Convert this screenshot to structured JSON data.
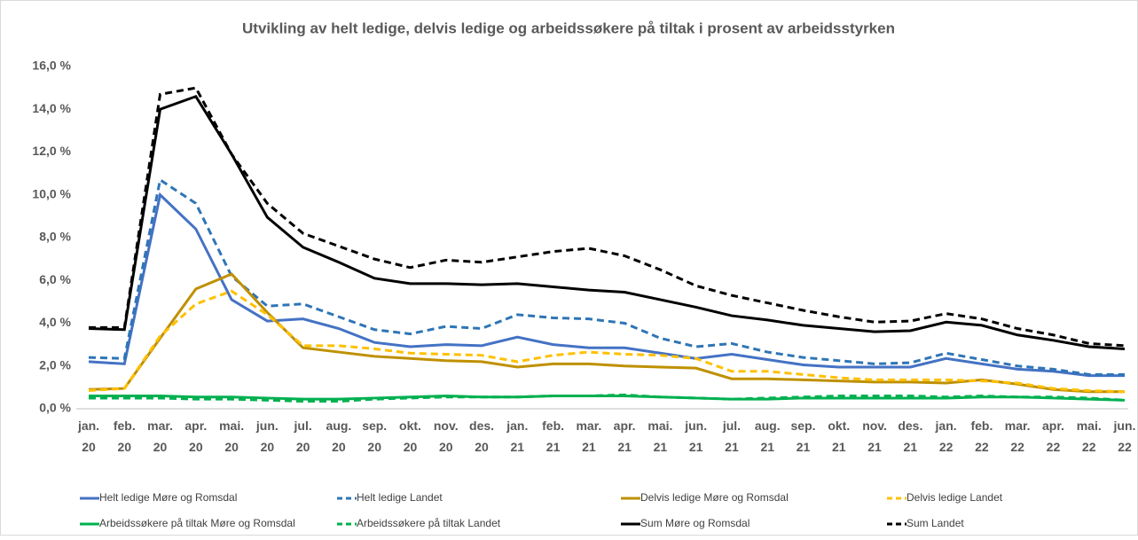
{
  "chart_data": {
    "type": "line",
    "title": "Utvikling av helt ledige, delvis ledige og arbeidssøkere på tiltak i prosent av arbeidsstyrken",
    "categories": [
      "jan. 20",
      "feb. 20",
      "mar. 20",
      "apr. 20",
      "mai. 20",
      "jun. 20",
      "jul. 20",
      "aug. 20",
      "sep. 20",
      "okt. 20",
      "nov. 20",
      "des. 20",
      "jan. 21",
      "feb. 21",
      "mar. 21",
      "apr. 21",
      "mai. 21",
      "jun. 21",
      "jul. 21",
      "aug. 21",
      "sep. 21",
      "okt. 21",
      "nov. 21",
      "des. 21",
      "jan. 22",
      "feb. 22",
      "mar. 22",
      "apr. 22",
      "mai. 22",
      "jun. 22"
    ],
    "series": [
      {
        "name": "Helt ledige Møre og Romsdal",
        "color": "#4472c4",
        "dashed": false,
        "values": [
          2.2,
          2.1,
          10.0,
          8.4,
          5.1,
          4.1,
          4.2,
          3.75,
          3.1,
          2.9,
          3.0,
          2.95,
          3.35,
          3.0,
          2.85,
          2.85,
          2.6,
          2.35,
          2.55,
          2.3,
          2.05,
          1.95,
          1.95,
          1.95,
          2.35,
          2.1,
          1.85,
          1.75,
          1.55,
          1.55
        ]
      },
      {
        "name": "Helt ledige Landet",
        "color": "#2e75b6",
        "dashed": true,
        "values": [
          2.4,
          2.35,
          10.7,
          9.6,
          6.2,
          4.8,
          4.9,
          4.3,
          3.7,
          3.5,
          3.85,
          3.75,
          4.4,
          4.25,
          4.2,
          4.0,
          3.3,
          2.9,
          3.05,
          2.65,
          2.4,
          2.25,
          2.1,
          2.15,
          2.6,
          2.3,
          2.0,
          1.85,
          1.6,
          1.6
        ]
      },
      {
        "name": "Delvis ledige Møre og Romsdal",
        "color": "#bf9000",
        "dashed": false,
        "values": [
          0.9,
          0.95,
          3.3,
          5.6,
          6.3,
          4.5,
          2.85,
          2.65,
          2.45,
          2.35,
          2.25,
          2.2,
          1.95,
          2.1,
          2.1,
          2.0,
          1.95,
          1.9,
          1.4,
          1.4,
          1.35,
          1.3,
          1.25,
          1.25,
          1.2,
          1.35,
          1.15,
          0.9,
          0.8,
          0.8
        ]
      },
      {
        "name": "Delvis ledige Landet",
        "color": "#ffc000",
        "dashed": true,
        "values": [
          0.85,
          0.95,
          3.4,
          4.9,
          5.5,
          4.4,
          2.95,
          2.95,
          2.8,
          2.6,
          2.55,
          2.5,
          2.2,
          2.5,
          2.65,
          2.55,
          2.5,
          2.35,
          1.75,
          1.75,
          1.6,
          1.45,
          1.35,
          1.35,
          1.35,
          1.3,
          1.2,
          0.95,
          0.85,
          0.8
        ]
      },
      {
        "name": "Arbeidssøkere på tiltak Møre og Romsdal",
        "color": "#00b050",
        "dashed": false,
        "values": [
          0.6,
          0.6,
          0.6,
          0.55,
          0.55,
          0.5,
          0.45,
          0.45,
          0.5,
          0.55,
          0.6,
          0.55,
          0.55,
          0.6,
          0.6,
          0.6,
          0.55,
          0.5,
          0.45,
          0.45,
          0.5,
          0.5,
          0.5,
          0.5,
          0.5,
          0.55,
          0.55,
          0.5,
          0.45,
          0.4
        ]
      },
      {
        "name": "Arbeidssøkere på tiltak Landet",
        "color": "#00b050",
        "dashed": true,
        "values": [
          0.5,
          0.5,
          0.5,
          0.45,
          0.45,
          0.4,
          0.35,
          0.35,
          0.45,
          0.5,
          0.55,
          0.55,
          0.55,
          0.6,
          0.6,
          0.65,
          0.55,
          0.5,
          0.45,
          0.5,
          0.55,
          0.6,
          0.6,
          0.6,
          0.55,
          0.6,
          0.55,
          0.55,
          0.5,
          0.4
        ]
      },
      {
        "name": "Sum Møre og Romsdal",
        "color": "#000000",
        "dashed": false,
        "values": [
          3.75,
          3.7,
          14.0,
          14.6,
          11.9,
          8.95,
          7.55,
          6.85,
          6.1,
          5.85,
          5.85,
          5.8,
          5.85,
          5.7,
          5.55,
          5.45,
          5.1,
          4.75,
          4.35,
          4.15,
          3.9,
          3.75,
          3.6,
          3.65,
          4.05,
          3.9,
          3.45,
          3.2,
          2.9,
          2.8
        ]
      },
      {
        "name": "Sum Landet",
        "color": "#000000",
        "dashed": true,
        "values": [
          3.8,
          3.8,
          14.7,
          15.0,
          11.9,
          9.6,
          8.2,
          7.6,
          7.0,
          6.6,
          6.95,
          6.85,
          7.1,
          7.35,
          7.5,
          7.15,
          6.5,
          5.75,
          5.3,
          4.95,
          4.6,
          4.3,
          4.05,
          4.1,
          4.45,
          4.2,
          3.75,
          3.45,
          3.05,
          2.95
        ]
      }
    ],
    "ylim": [
      0,
      16
    ],
    "yticks": [
      {
        "value": 0,
        "label": "0,0 %"
      },
      {
        "value": 2,
        "label": "2,0 %"
      },
      {
        "value": 4,
        "label": "4,0 %"
      },
      {
        "value": 6,
        "label": "6,0 %"
      },
      {
        "value": 8,
        "label": "8,0 %"
      },
      {
        "value": 10,
        "label": "10,0 %"
      },
      {
        "value": 12,
        "label": "12,0 %"
      },
      {
        "value": 14,
        "label": "14,0 %"
      },
      {
        "value": 16,
        "label": "16,0 %"
      }
    ],
    "grid": false,
    "legend": "bottom"
  }
}
